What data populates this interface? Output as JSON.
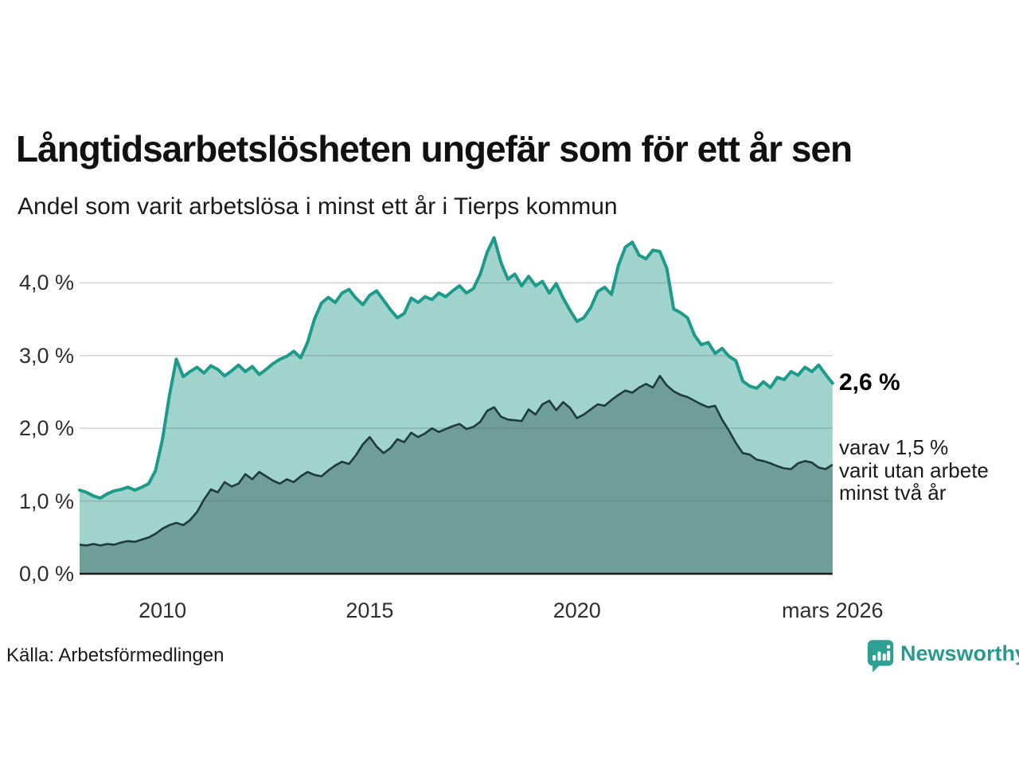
{
  "header": {
    "title": "Långtidsarbetslösheten ungefär som för ett år sen",
    "subtitle": "Andel som varit arbetslösa i minst ett år i Tierps kommun"
  },
  "annotations": {
    "latest_value": "2,6 %",
    "secondary_lines": [
      "varav 1,5 %",
      "varit utan arbete",
      "minst två år"
    ]
  },
  "footer": {
    "source": "Källa: Arbetsförmedlingen",
    "brand": "Newsworthy"
  },
  "colors": {
    "line_primary": "#1e9a8a",
    "fill_primary": "#9fd3cc",
    "line_secondary": "#1f3a3c",
    "fill_secondary": "#6f9e99",
    "gridline": "rgba(90,90,90,0.25)",
    "axis": "#1a1a1a",
    "brand": "#2a9a90"
  },
  "chart_data": {
    "type": "area",
    "title": "Långtidsarbetslösheten ungefär som för ett år sen",
    "subtitle": "Andel som varit arbetslösa i minst ett år i Tierps kommun",
    "grid": true,
    "legend_position": "none",
    "x_axis": {
      "start_year": 2008.0,
      "end_year": 2026.1667,
      "step_years": 0.1667,
      "ticks": [
        {
          "label": "2010",
          "year": 2010
        },
        {
          "label": "2015",
          "year": 2015
        },
        {
          "label": "2020",
          "year": 2020
        },
        {
          "label": "mars 2026",
          "year": 2026.1667
        }
      ]
    },
    "y_axis": {
      "min": 0,
      "max": 4.8,
      "unit": "%",
      "ticks": [
        {
          "label": "0,0 %",
          "value": 0
        },
        {
          "label": "1,0 %",
          "value": 1
        },
        {
          "label": "2,0 %",
          "value": 2
        },
        {
          "label": "3,0 %",
          "value": 3
        },
        {
          "label": "4,0 %",
          "value": 4
        }
      ]
    },
    "series": [
      {
        "id": "arbetslosa-minst-ett-ar",
        "end_label": "2,6 %",
        "end_value": 2.6,
        "color": "#1e9a8a",
        "fill": "#9fd3cc",
        "values": [
          1.15,
          1.12,
          1.07,
          1.04,
          1.1,
          1.14,
          1.16,
          1.19,
          1.15,
          1.19,
          1.24,
          1.42,
          1.85,
          2.45,
          2.95,
          2.71,
          2.78,
          2.84,
          2.76,
          2.86,
          2.81,
          2.72,
          2.79,
          2.87,
          2.78,
          2.85,
          2.74,
          2.81,
          2.89,
          2.95,
          2.99,
          3.06,
          2.97,
          3.18,
          3.5,
          3.72,
          3.8,
          3.73,
          3.86,
          3.91,
          3.79,
          3.7,
          3.83,
          3.89,
          3.76,
          3.63,
          3.52,
          3.58,
          3.79,
          3.73,
          3.81,
          3.77,
          3.86,
          3.81,
          3.89,
          3.96,
          3.86,
          3.92,
          4.12,
          4.42,
          4.62,
          4.28,
          4.05,
          4.12,
          3.96,
          4.09,
          3.96,
          4.02,
          3.86,
          3.99,
          3.79,
          3.62,
          3.47,
          3.52,
          3.66,
          3.88,
          3.94,
          3.84,
          4.24,
          4.49,
          4.56,
          4.38,
          4.33,
          4.45,
          4.43,
          4.2,
          3.64,
          3.59,
          3.52,
          3.28,
          3.15,
          3.18,
          3.03,
          3.1,
          2.99,
          2.93,
          2.65,
          2.58,
          2.55,
          2.64,
          2.56,
          2.7,
          2.67,
          2.78,
          2.73,
          2.84,
          2.78,
          2.87,
          2.74,
          2.62
        ]
      },
      {
        "id": "arbetslosa-minst-tva-ar",
        "end_label": "varav 1,5 % varit utan arbete minst två år",
        "end_value": 1.5,
        "color": "#1f3a3c",
        "fill": "#6f9e99",
        "values": [
          0.4,
          0.39,
          0.41,
          0.39,
          0.41,
          0.4,
          0.43,
          0.45,
          0.44,
          0.47,
          0.5,
          0.55,
          0.62,
          0.67,
          0.7,
          0.67,
          0.74,
          0.85,
          1.02,
          1.16,
          1.12,
          1.26,
          1.2,
          1.24,
          1.37,
          1.3,
          1.4,
          1.34,
          1.28,
          1.24,
          1.3,
          1.26,
          1.34,
          1.4,
          1.36,
          1.34,
          1.42,
          1.49,
          1.54,
          1.51,
          1.63,
          1.78,
          1.88,
          1.75,
          1.66,
          1.73,
          1.85,
          1.81,
          1.94,
          1.88,
          1.93,
          2.0,
          1.95,
          1.99,
          2.03,
          2.06,
          1.99,
          2.02,
          2.09,
          2.24,
          2.29,
          2.16,
          2.12,
          2.11,
          2.1,
          2.26,
          2.19,
          2.33,
          2.38,
          2.25,
          2.36,
          2.28,
          2.14,
          2.19,
          2.26,
          2.33,
          2.31,
          2.39,
          2.46,
          2.52,
          2.49,
          2.56,
          2.61,
          2.56,
          2.72,
          2.59,
          2.51,
          2.46,
          2.43,
          2.38,
          2.33,
          2.29,
          2.31,
          2.12,
          1.97,
          1.8,
          1.66,
          1.64,
          1.57,
          1.55,
          1.52,
          1.48,
          1.45,
          1.44,
          1.52,
          1.55,
          1.53,
          1.46,
          1.44,
          1.5
        ]
      }
    ]
  }
}
